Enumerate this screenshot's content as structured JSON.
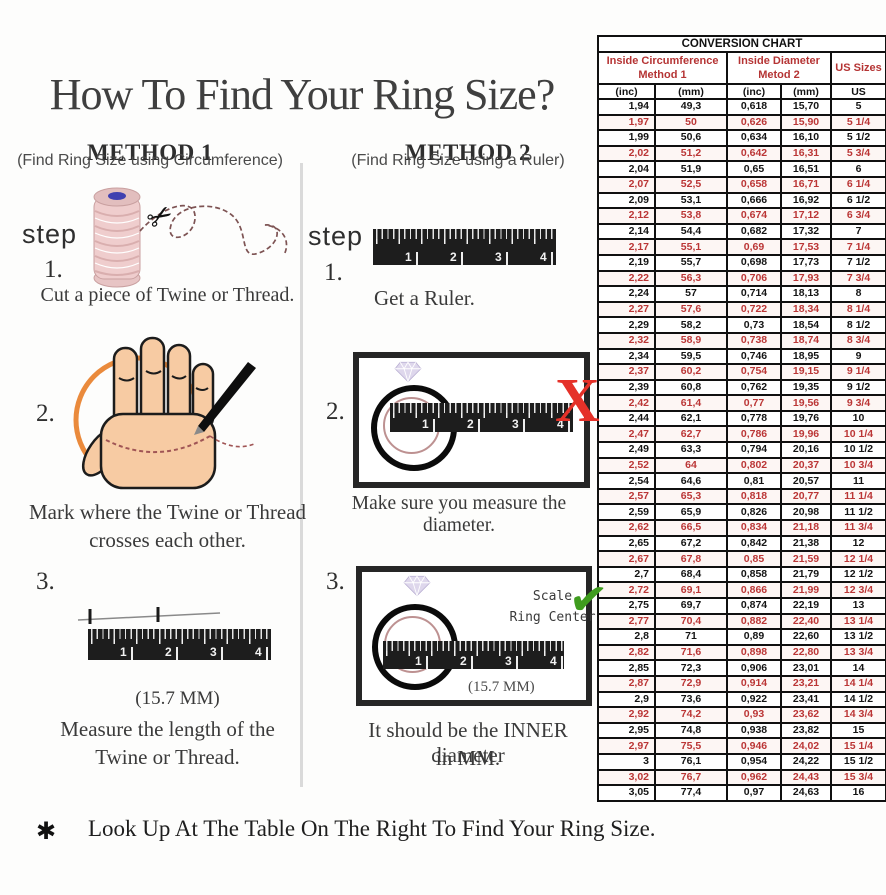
{
  "title": "How To Find Your Ring Size?",
  "icons": {
    "scissors": "✂",
    "cross": "X",
    "check": "✔",
    "asterisk": "✱"
  },
  "ruler_numbers": [
    "1",
    "2",
    "3",
    "4"
  ],
  "method1": {
    "heading": "METHOD 1",
    "subheading": "(Find Ring Size using Circumference)",
    "step_label": "step",
    "step1": {
      "num": "1.",
      "caption": "Cut a piece of Twine or Thread."
    },
    "step2": {
      "num": "2.",
      "caption_line1": "Mark where the Twine or Thread",
      "caption_line2": "crosses each other."
    },
    "step3": {
      "num": "3.",
      "measurement": "(15.7 MM)",
      "caption_line1": "Measure the length of the",
      "caption_line2": "Twine or Thread."
    }
  },
  "method2": {
    "heading": "METHOD 2",
    "subheading": "(Find Ring Size using a Ruler)",
    "step_label": "step",
    "step1": {
      "num": "1.",
      "caption": "Get a Ruler."
    },
    "step2": {
      "num": "2.",
      "caption": "Make sure you measure the diameter."
    },
    "step3": {
      "num": "3.",
      "scale_line1": "Scale",
      "scale_line2": "Ring Center",
      "measurement": "(15.7 MM)",
      "caption_line1": "It should be the INNER diameter",
      "caption_line2": "in MM."
    }
  },
  "footnote": "Look Up At The Table On The Right To Find Your Ring Size.",
  "table": {
    "title": "CONVERSION CHART",
    "group_headers": [
      {
        "line1": "Inside Circumference",
        "line2": "Method 1"
      },
      {
        "line1": "Inside Diameter",
        "line2": "Metod 2"
      },
      {
        "line1": "US Sizes",
        "line2": ""
      }
    ],
    "subheaders": [
      "(inc)",
      "(mm)",
      "(inc)",
      "(mm)",
      "US"
    ],
    "rows": [
      [
        "1,94",
        "49,3",
        "0,618",
        "15,70",
        "5"
      ],
      [
        "1,97",
        "50",
        "0,626",
        "15,90",
        "5 1/4"
      ],
      [
        "1,99",
        "50,6",
        "0,634",
        "16,10",
        "5 1/2"
      ],
      [
        "2,02",
        "51,2",
        "0,642",
        "16,31",
        "5 3/4"
      ],
      [
        "2,04",
        "51,9",
        "0,65",
        "16,51",
        "6"
      ],
      [
        "2,07",
        "52,5",
        "0,658",
        "16,71",
        "6 1/4"
      ],
      [
        "2,09",
        "53,1",
        "0,666",
        "16,92",
        "6 1/2"
      ],
      [
        "2,12",
        "53,8",
        "0,674",
        "17,12",
        "6 3/4"
      ],
      [
        "2,14",
        "54,4",
        "0,682",
        "17,32",
        "7"
      ],
      [
        "2,17",
        "55,1",
        "0,69",
        "17,53",
        "7 1/4"
      ],
      [
        "2,19",
        "55,7",
        "0,698",
        "17,73",
        "7 1/2"
      ],
      [
        "2,22",
        "56,3",
        "0,706",
        "17,93",
        "7 3/4"
      ],
      [
        "2,24",
        "57",
        "0,714",
        "18,13",
        "8"
      ],
      [
        "2,27",
        "57,6",
        "0,722",
        "18,34",
        "8 1/4"
      ],
      [
        "2,29",
        "58,2",
        "0,73",
        "18,54",
        "8 1/2"
      ],
      [
        "2,32",
        "58,9",
        "0,738",
        "18,74",
        "8 3/4"
      ],
      [
        "2,34",
        "59,5",
        "0,746",
        "18,95",
        "9"
      ],
      [
        "2,37",
        "60,2",
        "0,754",
        "19,15",
        "9 1/4"
      ],
      [
        "2,39",
        "60,8",
        "0,762",
        "19,35",
        "9 1/2"
      ],
      [
        "2,42",
        "61,4",
        "0,77",
        "19,56",
        "9 3/4"
      ],
      [
        "2,44",
        "62,1",
        "0,778",
        "19,76",
        "10"
      ],
      [
        "2,47",
        "62,7",
        "0,786",
        "19,96",
        "10 1/4"
      ],
      [
        "2,49",
        "63,3",
        "0,794",
        "20,16",
        "10 1/2"
      ],
      [
        "2,52",
        "64",
        "0,802",
        "20,37",
        "10 3/4"
      ],
      [
        "2,54",
        "64,6",
        "0,81",
        "20,57",
        "11"
      ],
      [
        "2,57",
        "65,3",
        "0,818",
        "20,77",
        "11 1/4"
      ],
      [
        "2,59",
        "65,9",
        "0,826",
        "20,98",
        "11 1/2"
      ],
      [
        "2,62",
        "66,5",
        "0,834",
        "21,18",
        "11 3/4"
      ],
      [
        "2,65",
        "67,2",
        "0,842",
        "21,38",
        "12"
      ],
      [
        "2,67",
        "67,8",
        "0,85",
        "21,59",
        "12 1/4"
      ],
      [
        "2,7",
        "68,4",
        "0,858",
        "21,79",
        "12 1/2"
      ],
      [
        "2,72",
        "69,1",
        "0,866",
        "21,99",
        "12 3/4"
      ],
      [
        "2,75",
        "69,7",
        "0,874",
        "22,19",
        "13"
      ],
      [
        "2,77",
        "70,4",
        "0,882",
        "22,40",
        "13 1/4"
      ],
      [
        "2,8",
        "71",
        "0,89",
        "22,60",
        "13 1/2"
      ],
      [
        "2,82",
        "71,6",
        "0,898",
        "22,80",
        "13 3/4"
      ],
      [
        "2,85",
        "72,3",
        "0,906",
        "23,01",
        "14"
      ],
      [
        "2,87",
        "72,9",
        "0,914",
        "23,21",
        "14 1/4"
      ],
      [
        "2,9",
        "73,6",
        "0,922",
        "23,41",
        "14 1/2"
      ],
      [
        "2,92",
        "74,2",
        "0,93",
        "23,62",
        "14 3/4"
      ],
      [
        "2,95",
        "74,8",
        "0,938",
        "23,82",
        "15"
      ],
      [
        "2,97",
        "75,5",
        "0,946",
        "24,02",
        "15 1/4"
      ],
      [
        "3",
        "76,1",
        "0,954",
        "24,22",
        "15 1/2"
      ],
      [
        "3,02",
        "76,7",
        "0,962",
        "24,43",
        "15 3/4"
      ],
      [
        "3,05",
        "77,4",
        "0,97",
        "24,63",
        "16"
      ]
    ]
  },
  "colors": {
    "accent_red": "#b53434",
    "check_green": "#3f9c1e",
    "cross_red": "#e53129",
    "circle_orange": "#ea8a3c"
  }
}
